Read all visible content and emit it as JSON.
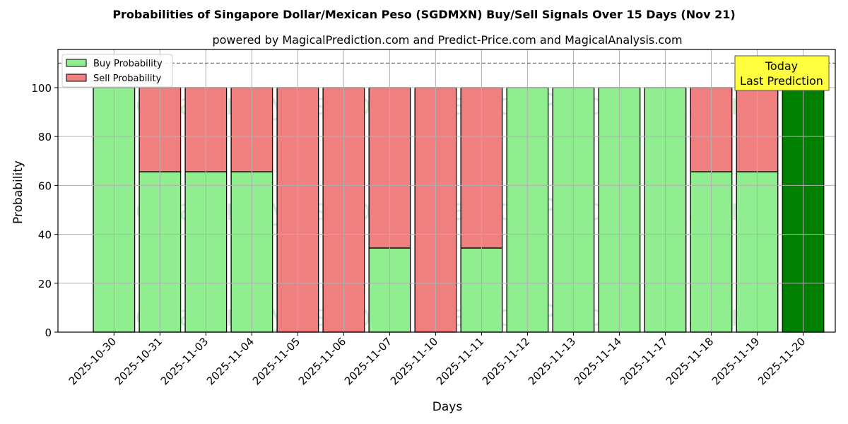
{
  "chart_data": {
    "type": "bar",
    "stacked": true,
    "title": "Probabilities of Singapore Dollar/Mexican Peso (SGDMXN) Buy/Sell Signals Over 15 Days (Nov 21)",
    "subtitle": "powered by MagicalPrediction.com and Predict-Price.com and MagicalAnalysis.com",
    "xlabel": "Days",
    "ylabel": "Probability",
    "ylim": [
      0,
      115.6
    ],
    "yticks": [
      0,
      20,
      40,
      60,
      80,
      100
    ],
    "grid": true,
    "legend_position": "top-left",
    "categories": [
      "2025-10-30",
      "2025-10-31",
      "2025-11-03",
      "2025-11-04",
      "2025-11-05",
      "2025-11-06",
      "2025-11-07",
      "2025-11-10",
      "2025-11-11",
      "2025-11-12",
      "2025-11-13",
      "2025-11-14",
      "2025-11-17",
      "2025-11-18",
      "2025-11-19",
      "2025-11-20"
    ],
    "series": [
      {
        "name": "Buy Probability",
        "color": "#90ee90",
        "values": [
          100,
          65.6,
          65.6,
          65.6,
          0,
          0,
          34.4,
          0,
          34.4,
          100,
          100,
          100,
          100,
          65.6,
          65.6,
          100
        ]
      },
      {
        "name": "Sell Probability",
        "color": "#f08080",
        "values": [
          0,
          34.4,
          34.4,
          34.4,
          100,
          100,
          65.6,
          100,
          65.6,
          0,
          0,
          0,
          0,
          34.4,
          34.4,
          0
        ]
      }
    ],
    "highlight": {
      "index": 15,
      "color": "#008000"
    },
    "reference_line": {
      "y": 110,
      "style": "dashed"
    },
    "annotation": {
      "line1": "Today",
      "line2": "Last Prediction",
      "color": "#ffff40"
    },
    "watermarks": [
      "MagicalAnalysis.com",
      "MagicalPrediction.com"
    ]
  }
}
